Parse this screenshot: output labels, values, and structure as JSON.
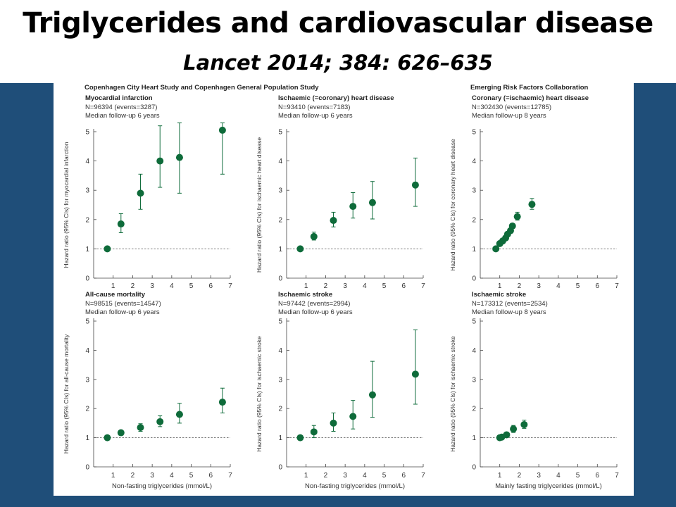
{
  "slide": {
    "title": "Triglycerides and cardiovascular disease",
    "subtitle": "Lancet 2014; 384: 626–635"
  },
  "figure": {
    "group_left_title": "Copenhagen City Heart Study and Copenhagen General Population Study",
    "group_right_title": "Emerging Risk Factors Collaboration",
    "marker_color": "#0e6b3a"
  },
  "chart_data": [
    {
      "type": "scatter",
      "title": "Myocardial infarction",
      "info": [
        "N=96394 (events=3287)",
        "Median follow-up 6 years"
      ],
      "ylabel": "Hazard ratio (95% CIs) for myocardial infarction",
      "xlabel": "",
      "xlim": [
        0,
        7
      ],
      "ylim": [
        0,
        5
      ],
      "x_ticks": [
        "1",
        "2",
        "3",
        "4",
        "5",
        "6",
        "7"
      ],
      "y_ticks": [
        "0",
        "1",
        "2",
        "3",
        "4",
        "5"
      ],
      "reference_line": 1,
      "x": [
        0.7,
        1.4,
        2.4,
        3.4,
        4.4,
        6.6
      ],
      "y": [
        1.0,
        1.85,
        2.9,
        4.0,
        4.12,
        5.05
      ],
      "ci_low": [
        1.0,
        1.55,
        2.35,
        3.1,
        2.9,
        3.55
      ],
      "ci_high": [
        1.0,
        2.2,
        3.55,
        5.2,
        5.3,
        5.3
      ]
    },
    {
      "type": "scatter",
      "title": "Ischaemic (=coronary) heart disease",
      "info": [
        "N=93410 (events=7183)",
        "Median follow-up 6 years"
      ],
      "ylabel": "Hazard ratio (95% CIs) for ischaemic heart disease",
      "xlabel": "",
      "xlim": [
        0,
        7
      ],
      "ylim": [
        0,
        5
      ],
      "x_ticks": [
        "1",
        "2",
        "3",
        "4",
        "5",
        "6",
        "7"
      ],
      "y_ticks": [
        "0",
        "1",
        "2",
        "3",
        "4",
        "5"
      ],
      "reference_line": 1,
      "x": [
        0.7,
        1.4,
        2.4,
        3.4,
        4.4,
        6.6
      ],
      "y": [
        1.0,
        1.42,
        1.97,
        2.45,
        2.58,
        3.18
      ],
      "ci_low": [
        1.0,
        1.3,
        1.75,
        2.05,
        2.02,
        2.45
      ],
      "ci_high": [
        1.0,
        1.57,
        2.25,
        2.92,
        3.3,
        4.1
      ]
    },
    {
      "type": "scatter",
      "title": "Coronary (=ischaemic) heart disease",
      "info": [
        "N=302430 (events=12785)",
        "Median follow-up 8 years"
      ],
      "ylabel": "Hazard ratio (95% CIs) for coronary heart disease",
      "xlabel": "",
      "xlim": [
        0,
        7
      ],
      "ylim": [
        0,
        5
      ],
      "x_ticks": [
        "1",
        "2",
        "3",
        "4",
        "5",
        "6",
        "7"
      ],
      "y_ticks": [
        "0",
        "1",
        "2",
        "3",
        "4",
        "5"
      ],
      "reference_line": 1,
      "x": [
        0.8,
        1.0,
        1.15,
        1.3,
        1.4,
        1.55,
        1.65,
        1.9,
        2.65
      ],
      "y": [
        1.0,
        1.18,
        1.27,
        1.37,
        1.5,
        1.62,
        1.78,
        2.1,
        2.52
      ],
      "ci_low": [
        1.0,
        1.13,
        1.22,
        1.32,
        1.45,
        1.56,
        1.7,
        1.98,
        2.35
      ],
      "ci_high": [
        1.0,
        1.23,
        1.32,
        1.42,
        1.56,
        1.68,
        1.86,
        2.25,
        2.72
      ]
    },
    {
      "type": "scatter",
      "title": "All-cause mortality",
      "info": [
        "N=98515 (events=14547)",
        "Median follow-up 6 years"
      ],
      "ylabel": "Hazard ratio (95% CIs) for all-cause mortality",
      "xlabel": "Non-fasting triglycerides (mmol/L)",
      "xlim": [
        0,
        7
      ],
      "ylim": [
        0,
        5
      ],
      "x_ticks": [
        "1",
        "2",
        "3",
        "4",
        "5",
        "6",
        "7"
      ],
      "y_ticks": [
        "0",
        "1",
        "2",
        "3",
        "4",
        "5"
      ],
      "reference_line": 1,
      "x": [
        0.7,
        1.4,
        2.4,
        3.4,
        4.4,
        6.6
      ],
      "y": [
        1.0,
        1.17,
        1.35,
        1.55,
        1.8,
        2.22
      ],
      "ci_low": [
        1.0,
        1.1,
        1.22,
        1.38,
        1.5,
        1.85
      ],
      "ci_high": [
        1.0,
        1.24,
        1.48,
        1.75,
        2.18,
        2.7
      ]
    },
    {
      "type": "scatter",
      "title": "Ischaemic stroke",
      "info": [
        "N=97442 (events=2994)",
        "Median follow-up 6 years"
      ],
      "ylabel": "Hazard ratio (95% CIs) for ischaemic stroke",
      "xlabel": "Non-fasting triglycerides (mmol/L)",
      "xlim": [
        0,
        7
      ],
      "ylim": [
        0,
        5
      ],
      "x_ticks": [
        "1",
        "2",
        "3",
        "4",
        "5",
        "6",
        "7"
      ],
      "y_ticks": [
        "0",
        "1",
        "2",
        "3",
        "4",
        "5"
      ],
      "reference_line": 1,
      "x": [
        0.7,
        1.4,
        2.4,
        3.4,
        4.4,
        6.6
      ],
      "y": [
        1.0,
        1.2,
        1.5,
        1.73,
        2.47,
        3.18
      ],
      "ci_low": [
        1.0,
        1.0,
        1.22,
        1.3,
        1.7,
        2.15
      ],
      "ci_high": [
        1.0,
        1.42,
        1.85,
        2.28,
        3.62,
        4.7
      ]
    },
    {
      "type": "scatter",
      "title": "Ischaemic stroke",
      "info": [
        "N=173312 (events=2534)",
        "Median follow-up 8 years"
      ],
      "ylabel": "Hazard ratio (95% CIs) for ischaemic stroke",
      "xlabel": "Mainly fasting triglycerides (mmol/L)",
      "xlim": [
        0,
        7
      ],
      "ylim": [
        0,
        5
      ],
      "x_ticks": [
        "1",
        "2",
        "3",
        "4",
        "5",
        "6",
        "7"
      ],
      "y_ticks": [
        "0",
        "1",
        "2",
        "3",
        "4",
        "5"
      ],
      "reference_line": 1,
      "x": [
        1.0,
        1.1,
        1.35,
        1.7,
        2.25
      ],
      "y": [
        1.0,
        1.02,
        1.1,
        1.3,
        1.45
      ],
      "ci_low": [
        1.0,
        0.97,
        1.02,
        1.18,
        1.32
      ],
      "ci_high": [
        1.0,
        1.07,
        1.18,
        1.42,
        1.6
      ]
    }
  ]
}
